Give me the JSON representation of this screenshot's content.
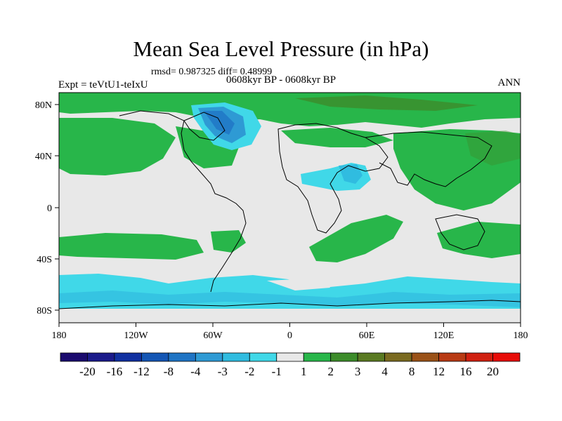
{
  "title": "Mean Sea Level Pressure (in hPa)",
  "subtitle_rmsd": "rmsd= 0.987325 diff= 0.48999",
  "subtitle_left": "Expt = teVtU1-teIxU",
  "subtitle_center": "0608kyr BP - 0608kyr BP",
  "subtitle_right": "ANN",
  "lat_labels": [
    "80N",
    "40N",
    "0",
    "40S",
    "80S"
  ],
  "lon_labels": [
    "180",
    "120W",
    "60W",
    "0",
    "60E",
    "120E",
    "180"
  ],
  "colorbar": {
    "labels": [
      "-20",
      "-16",
      "-12",
      "-8",
      "-4",
      "-3",
      "-2",
      "-1",
      "1",
      "2",
      "3",
      "4",
      "8",
      "12",
      "16",
      "20"
    ],
    "colors": [
      "#1a0a6e",
      "#1a1a8a",
      "#1030a0",
      "#1456b4",
      "#1f74c4",
      "#2e9ad4",
      "#30bce0",
      "#40d8e8",
      "#e8e8e8",
      "#28b64a",
      "#3c8c2a",
      "#5a7a22",
      "#7a6a20",
      "#9a5218",
      "#b83a14",
      "#d02010",
      "#e80c08"
    ]
  }
}
